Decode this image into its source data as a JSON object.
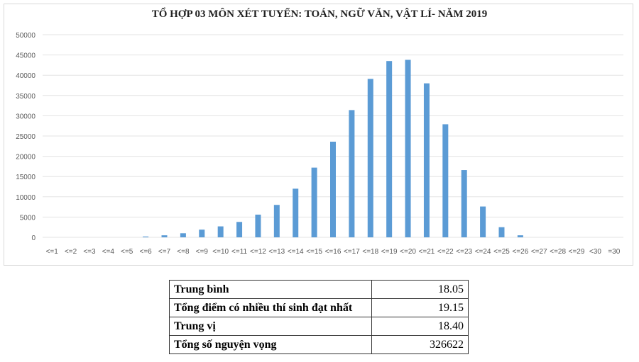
{
  "chart_data": {
    "type": "bar",
    "title": "TỔ HỢP 03 MÔN XÉT TUYỂN: TOÁN, NGỮ VĂN, VẬT LÍ- NĂM 2019",
    "xlabel": "",
    "ylabel": "",
    "ylim": [
      0,
      50000
    ],
    "yticks": [
      0,
      5000,
      10000,
      15000,
      20000,
      25000,
      30000,
      35000,
      40000,
      45000,
      50000
    ],
    "grid": true,
    "bar_color": "#5b9bd5",
    "categories": [
      "<=1",
      "<=2",
      "<=3",
      "<=4",
      "<=5",
      "<=6",
      "<=7",
      "<=8",
      "<=9",
      "<=10",
      "<=11",
      "<=12",
      "<=13",
      "<=14",
      "<=15",
      "<=16",
      "<=17",
      "<=18",
      "<=19",
      "<=20",
      "<=21",
      "<=22",
      "<=23",
      "<=24",
      "<=25",
      "<=26",
      "<=27",
      "<=28",
      "<=29",
      "<30",
      "=30"
    ],
    "values": [
      0,
      0,
      0,
      0,
      0,
      200,
      500,
      1000,
      1900,
      2700,
      3800,
      5600,
      8000,
      12000,
      17200,
      23600,
      31400,
      39100,
      43500,
      43800,
      38000,
      27900,
      16600,
      7600,
      2500,
      500,
      0,
      0,
      0,
      0,
      0
    ]
  },
  "stats": [
    {
      "label": "Trung bình",
      "value": "18.05"
    },
    {
      "label": "Tổng điểm có nhiều thí sinh đạt nhất",
      "value": "19.15"
    },
    {
      "label": "Trung vị",
      "value": "18.40"
    },
    {
      "label": "Tổng số nguyện vọng",
      "value": "326622"
    }
  ]
}
